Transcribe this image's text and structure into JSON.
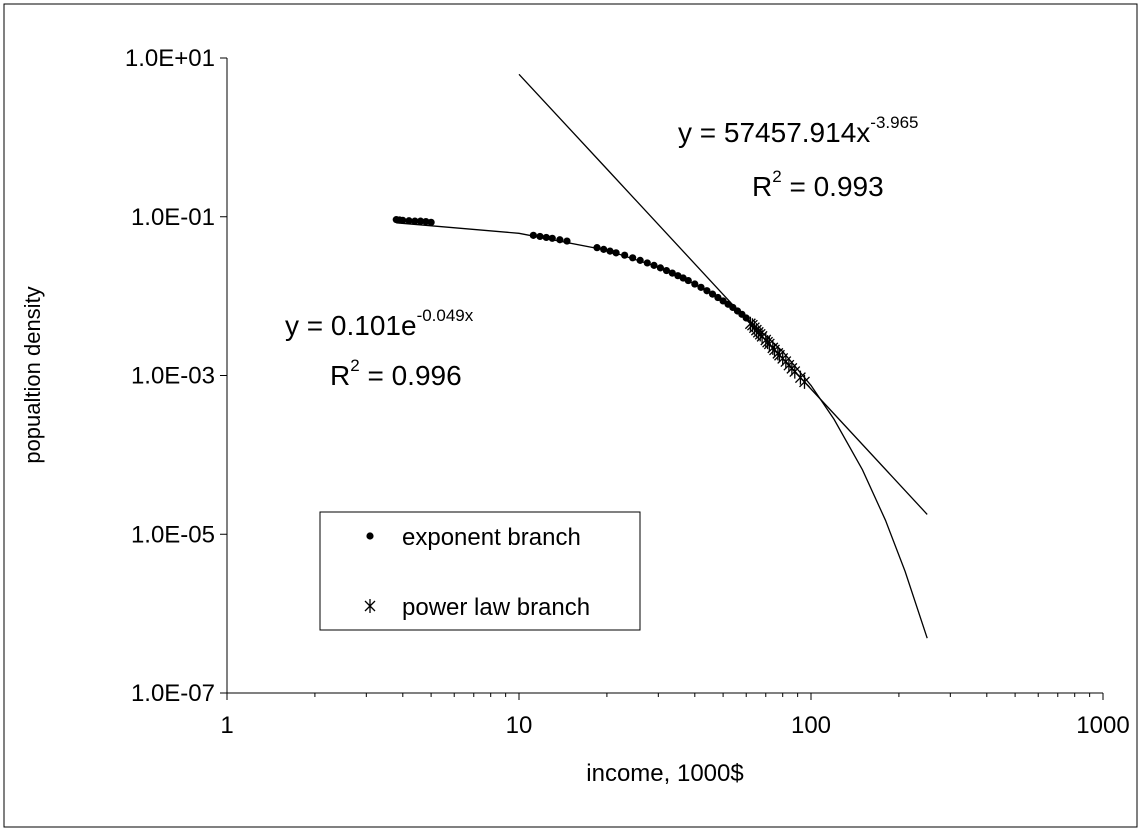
{
  "chart_data": {
    "type": "scatter",
    "xlabel": "income, 1000$",
    "ylabel": "popualtion density",
    "log_x": true,
    "log_y": true,
    "xlim": [
      1,
      1000
    ],
    "ylim": [
      1e-07,
      10
    ],
    "xticks": [
      1,
      10,
      100,
      1000
    ],
    "xminor_ticks": true,
    "yticks": [
      {
        "value": 10,
        "label": "1.0E+01"
      },
      {
        "value": 0.1,
        "label": "1.0E-01"
      },
      {
        "value": 0.001,
        "label": "1.0E-03"
      },
      {
        "value": 1e-05,
        "label": "1.0E-05"
      },
      {
        "value": 1e-07,
        "label": "1.0E-07"
      }
    ],
    "grid": false,
    "legend": "lower left",
    "series": [
      {
        "name": "exponent branch",
        "color": "#000000",
        "marker": "dot",
        "x": [
          3.8,
          3.9,
          4.0,
          4.2,
          4.4,
          4.6,
          4.8,
          5.0,
          11.2,
          11.8,
          12.4,
          13,
          13.8,
          14.6,
          18.5,
          19.5,
          20.5,
          21.5,
          23,
          24.5,
          26,
          27.5,
          29,
          30.5,
          32,
          33.5,
          35,
          36.5,
          38,
          40,
          42,
          44,
          46,
          48,
          50,
          52,
          54,
          56,
          58,
          60
        ],
        "values": [
          0.092,
          0.091,
          0.09,
          0.089,
          0.088,
          0.088,
          0.087,
          0.085,
          0.0583,
          0.0565,
          0.0549,
          0.0535,
          0.0513,
          0.0494,
          0.0408,
          0.0388,
          0.0369,
          0.0351,
          0.0328,
          0.0304,
          0.0282,
          0.0262,
          0.0244,
          0.0227,
          0.021,
          0.0195,
          0.0181,
          0.0169,
          0.0157,
          0.0142,
          0.0129,
          0.0117,
          0.0106,
          0.0096,
          0.0087,
          0.0079,
          0.0072,
          0.0065,
          0.0059,
          0.0053
        ]
      },
      {
        "name": "power law branch",
        "color": "#000000",
        "marker": "asterisk",
        "x": [
          62,
          63,
          64,
          65,
          66,
          67,
          68,
          70,
          71,
          72,
          74,
          75,
          77,
          78,
          80,
          82,
          84,
          86,
          88,
          92,
          95
        ],
        "values": [
          0.00449,
          0.0043,
          0.004,
          0.00373,
          0.0035,
          0.0033,
          0.00311,
          0.0028,
          0.00263,
          0.0025,
          0.00223,
          0.0021,
          0.0019,
          0.0018,
          0.00164,
          0.0015,
          0.00135,
          0.00123,
          0.00112,
          0.00094,
          0.00083
        ]
      }
    ],
    "trendlines": [
      {
        "color": "#000000",
        "x": [
          3.8,
          10,
          20,
          30,
          40,
          50,
          60,
          80,
          100,
          120,
          150,
          180,
          210,
          250
        ],
        "values": [
          0.084,
          0.0619,
          0.0379,
          0.0232,
          0.0142,
          0.00871,
          0.00534,
          0.002,
          0.00075,
          0.00028,
          6.5e-05,
          1.5e-05,
          3.4e-06,
          4.9e-07
        ]
      },
      {
        "color": "#000000",
        "x": [
          10,
          20,
          50,
          100,
          250
        ],
        "values": [
          6.23,
          0.399,
          0.0105,
          0.000675,
          1.78e-05
        ]
      }
    ],
    "annotations": [
      {
        "base": "y = 57457.914x",
        "exponent": "-3.965"
      },
      {
        "base": "R",
        "exponent": "2",
        "rest": " = 0.993"
      },
      {
        "base": "y = 0.101e",
        "exponent": "-0.049x"
      },
      {
        "base": "R",
        "exponent": "2",
        "rest": " = 0.996"
      }
    ]
  }
}
